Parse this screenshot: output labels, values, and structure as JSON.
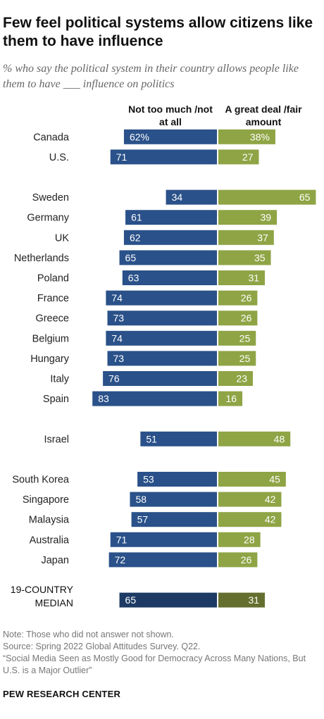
{
  "title": "Few feel political systems allow citizens like them to have influence",
  "subtitle": "% who say the political system in their country allows people like them to have ___ influence on politics",
  "legend": {
    "negative_label": "Not too much /not at all",
    "positive_label": "A great deal /fair amount"
  },
  "colors": {
    "negative": "#2a5189",
    "positive": "#8fa445",
    "negative_median": "#1c3a64",
    "positive_median": "#646f2f"
  },
  "chart_data": {
    "type": "bar",
    "orientation": "horizontal-diverging",
    "categories": [
      "Canada",
      "U.S.",
      "Sweden",
      "Germany",
      "UK",
      "Netherlands",
      "Poland",
      "France",
      "Greece",
      "Belgium",
      "Hungary",
      "Italy",
      "Spain",
      "Israel",
      "South Korea",
      "Singapore",
      "Malaysia",
      "Australia",
      "Japan",
      "19-COUNTRY MEDIAN"
    ],
    "groups": [
      [
        0,
        1
      ],
      [
        2,
        3,
        4,
        5,
        6,
        7,
        8,
        9,
        10,
        11,
        12
      ],
      [
        13
      ],
      [
        14,
        15,
        16,
        17,
        18
      ],
      [
        19
      ]
    ],
    "series": [
      {
        "name": "Not too much /not at all",
        "values": [
          62,
          71,
          34,
          61,
          62,
          65,
          63,
          74,
          73,
          74,
          73,
          76,
          83,
          51,
          53,
          58,
          57,
          71,
          72,
          65
        ]
      },
      {
        "name": "A great deal /fair amount",
        "values": [
          38,
          27,
          65,
          39,
          37,
          35,
          31,
          26,
          26,
          25,
          25,
          23,
          16,
          48,
          45,
          42,
          42,
          28,
          26,
          31
        ]
      }
    ],
    "value_labels": {
      "negative": [
        "62%",
        "71",
        "34",
        "61",
        "62",
        "65",
        "63",
        "74",
        "73",
        "74",
        "73",
        "76",
        "83",
        "51",
        "53",
        "58",
        "57",
        "71",
        "72",
        "65"
      ],
      "positive": [
        "38%",
        "27",
        "65",
        "39",
        "37",
        "35",
        "31",
        "26",
        "26",
        "25",
        "25",
        "23",
        "16",
        "48",
        "45",
        "42",
        "42",
        "28",
        "26",
        "31"
      ]
    },
    "xlim": [
      -100,
      100
    ]
  },
  "notes": {
    "note": "Note: Those who did not answer not shown.",
    "source": "Source: Spring 2022 Global Attitudes Survey. Q22.",
    "report": "“Social Media Seen as Mostly Good for Democracy Across Many Nations, But U.S. is a Major Outlier”"
  },
  "source_name": "PEW RESEARCH CENTER"
}
